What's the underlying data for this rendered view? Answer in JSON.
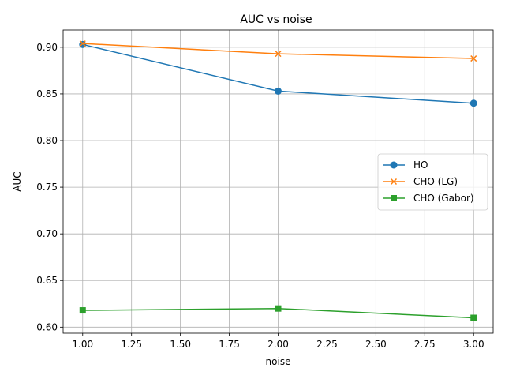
{
  "chart_data": {
    "type": "line",
    "title": "AUC vs noise",
    "xlabel": "noise",
    "ylabel": "AUC",
    "xlim": [
      0.9,
      3.1
    ],
    "ylim": [
      0.5935,
      0.9185
    ],
    "xticks": [
      1.0,
      1.25,
      1.5,
      1.75,
      2.0,
      2.25,
      2.5,
      2.75,
      3.0
    ],
    "xtick_labels": [
      "1.00",
      "1.25",
      "1.50",
      "1.75",
      "2.00",
      "2.25",
      "2.50",
      "2.75",
      "3.00"
    ],
    "yticks": [
      0.6,
      0.65,
      0.7,
      0.75,
      0.8,
      0.85,
      0.9
    ],
    "ytick_labels": [
      "0.60",
      "0.65",
      "0.70",
      "0.75",
      "0.80",
      "0.85",
      "0.90"
    ],
    "grid": true,
    "legend_position": "center-right",
    "series": [
      {
        "name": "HO",
        "color": "#1f77b4",
        "marker": "circle",
        "x": [
          1,
          2,
          3
        ],
        "y": [
          0.903,
          0.853,
          0.84
        ]
      },
      {
        "name": "CHO (LG)",
        "color": "#ff7f0e",
        "marker": "x",
        "x": [
          1,
          2,
          3
        ],
        "y": [
          0.904,
          0.893,
          0.888
        ]
      },
      {
        "name": "CHO (Gabor)",
        "color": "#2ca02c",
        "marker": "square",
        "x": [
          1,
          2,
          3
        ],
        "y": [
          0.618,
          0.62,
          0.61
        ]
      }
    ]
  }
}
